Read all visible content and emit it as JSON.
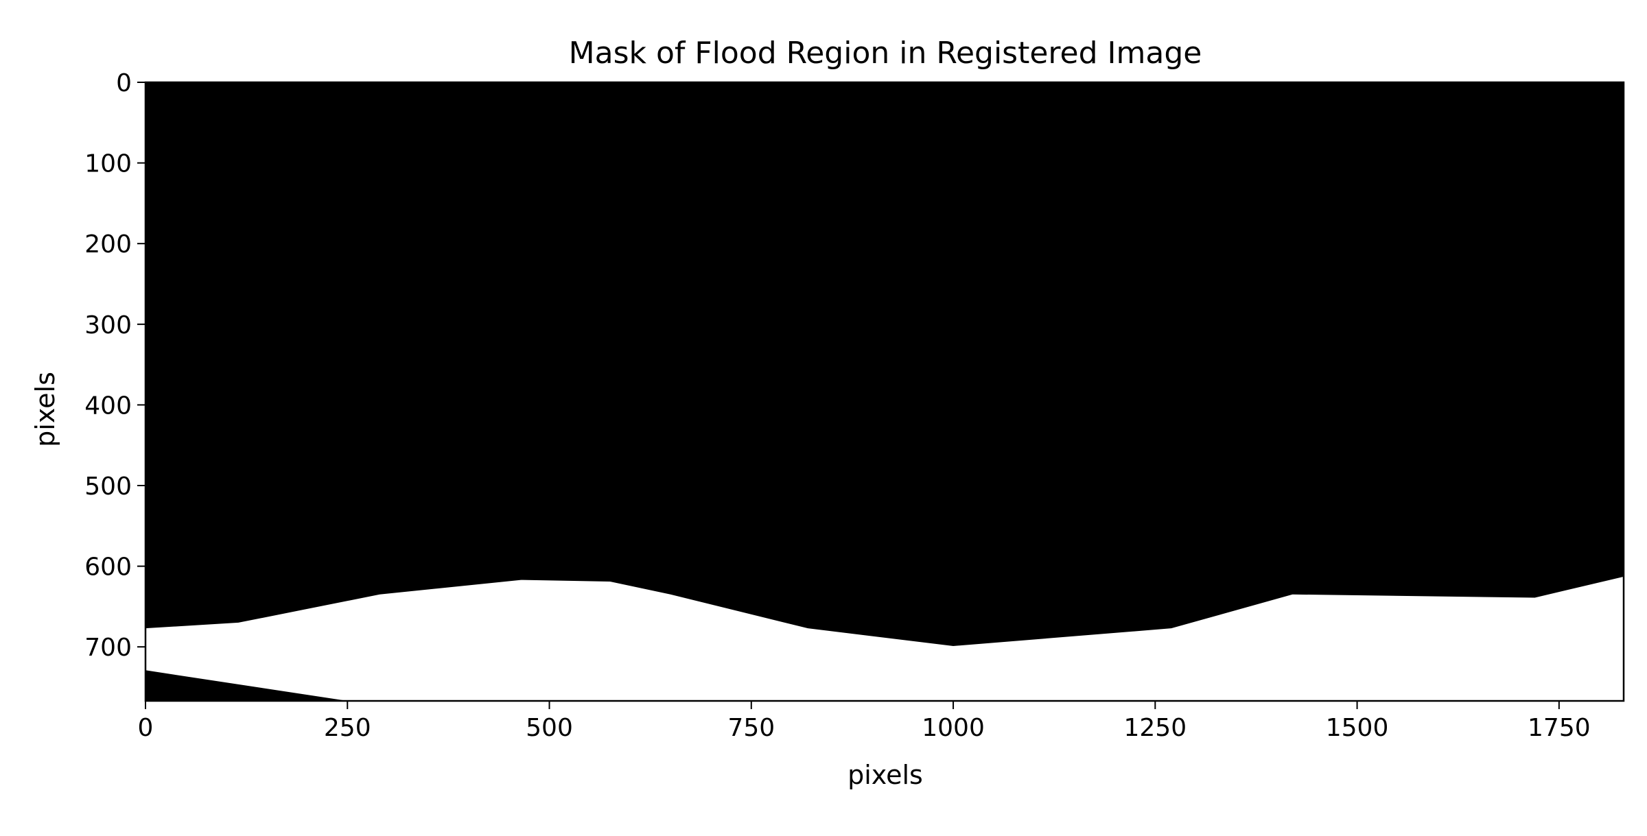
{
  "chart_data": {
    "type": "heatmap",
    "title": "Mask of Flood Region in Registered Image",
    "xlabel": "pixels",
    "ylabel": "pixels",
    "xlim": [
      0,
      1830
    ],
    "ylim": [
      767,
      0
    ],
    "y_axis_inverted": true,
    "xticks": [
      0,
      250,
      500,
      750,
      1000,
      1250,
      1500,
      1750
    ],
    "yticks": [
      0,
      100,
      200,
      300,
      400,
      500,
      600,
      700
    ],
    "grid": false,
    "legend": "none",
    "colormap": "binary (black = 0, white = 1)",
    "regions": [
      {
        "label": "black upper region (value 0)",
        "color": "#000000",
        "lower_boundary": [
          [
            0,
            677
          ],
          [
            115,
            670
          ],
          [
            290,
            635
          ],
          [
            465,
            617
          ],
          [
            575,
            619
          ],
          [
            650,
            635
          ],
          [
            820,
            677
          ],
          [
            1000,
            699
          ],
          [
            1270,
            677
          ],
          [
            1420,
            635
          ],
          [
            1720,
            639
          ],
          [
            1830,
            613
          ]
        ]
      },
      {
        "label": "white flood region (value 1)",
        "color": "#ffffff"
      },
      {
        "label": "black lower-left wedge (value 0)",
        "color": "#000000",
        "upper_boundary": [
          [
            0,
            729
          ],
          [
            250,
            767
          ]
        ]
      }
    ]
  }
}
